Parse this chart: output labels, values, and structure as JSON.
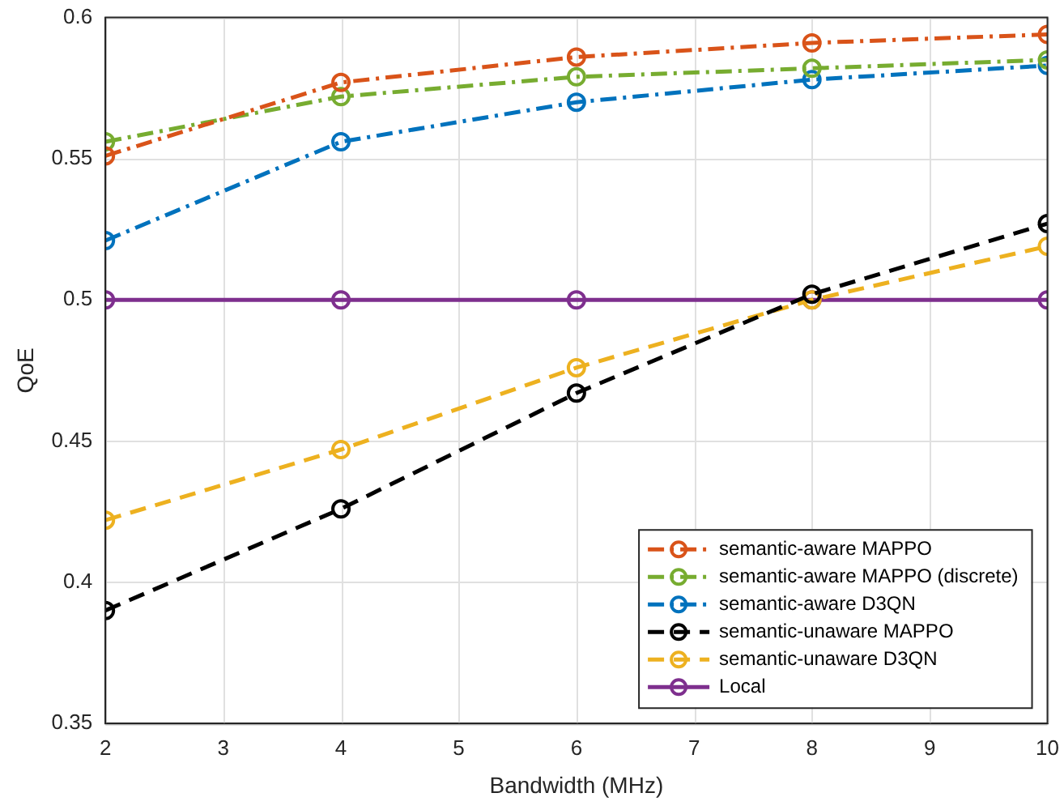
{
  "chart_data": {
    "type": "line",
    "xlabel": "Bandwidth (MHz)",
    "ylabel": "QoE",
    "x": [
      2,
      4,
      6,
      8,
      10
    ],
    "series": [
      {
        "name": "semantic-aware MAPPO",
        "color": "#d95319",
        "line_style": "dashdot",
        "values": [
          0.551,
          0.577,
          0.586,
          0.591,
          0.594
        ]
      },
      {
        "name": "semantic-aware MAPPO (discrete)",
        "color": "#77ac30",
        "line_style": "dashdot",
        "values": [
          0.556,
          0.572,
          0.579,
          0.582,
          0.585
        ]
      },
      {
        "name": "semantic-aware D3QN",
        "color": "#0072bd",
        "line_style": "dashdot",
        "values": [
          0.521,
          0.556,
          0.57,
          0.578,
          0.583
        ]
      },
      {
        "name": "semantic-unaware MAPPO",
        "color": "#000000",
        "line_style": "dashed",
        "values": [
          0.39,
          0.426,
          0.467,
          0.502,
          0.527
        ]
      },
      {
        "name": "semantic-unaware D3QN",
        "color": "#edb120",
        "line_style": "dashed",
        "values": [
          0.422,
          0.447,
          0.476,
          0.5,
          0.519
        ]
      },
      {
        "name": "Local",
        "color": "#7e2f8e",
        "line_style": "solid",
        "values": [
          0.5,
          0.5,
          0.5,
          0.5,
          0.5
        ]
      }
    ],
    "xlim": [
      2,
      10
    ],
    "xticks": [
      2,
      3,
      4,
      5,
      6,
      7,
      8,
      9,
      10
    ],
    "ylim": [
      0.35,
      0.6
    ],
    "yticks": [
      0.35,
      0.4,
      0.45,
      0.5,
      0.55,
      0.6
    ],
    "grid": true,
    "legend": "bottom right",
    "marker": "circle"
  }
}
